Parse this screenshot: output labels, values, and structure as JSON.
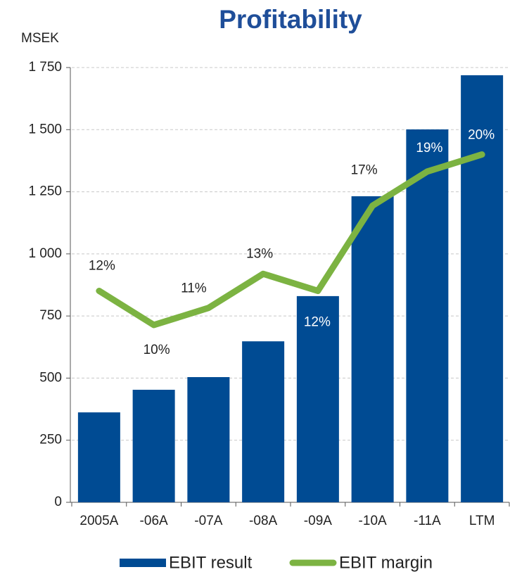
{
  "chart_data": {
    "type": "bar+line",
    "title": "Profitability",
    "y_axis_label": "MSEK",
    "categories": [
      "2005A",
      "-06A",
      "-07A",
      "-08A",
      "-09A",
      "-10A",
      "-11A",
      "LTM"
    ],
    "series": [
      {
        "name": "EBIT result",
        "type": "bar",
        "color": "#004b93",
        "values": [
          362,
          453,
          504,
          648,
          830,
          1232,
          1501,
          1719
        ]
      },
      {
        "name": "EBIT margin",
        "type": "line",
        "axis": "y2",
        "color": "#7cb342",
        "values": [
          12,
          10,
          11,
          13,
          12,
          17,
          19,
          20
        ],
        "value_labels": [
          "12%",
          "10%",
          "11%",
          "13%",
          "12%",
          "17%",
          "19%",
          "20%"
        ]
      }
    ],
    "ylim": [
      0,
      1750
    ],
    "yticks": [
      0,
      250,
      500,
      750,
      {
        "value": 1000,
        "label": "1 000"
      },
      {
        "value": 1250,
        "label": "1 250"
      },
      {
        "value": 1500,
        "label": "1 500"
      },
      {
        "value": 1750,
        "label": "1 750"
      }
    ],
    "y2lim": [
      -0.4,
      25.1
    ],
    "grid": true,
    "legend": "bottom"
  }
}
